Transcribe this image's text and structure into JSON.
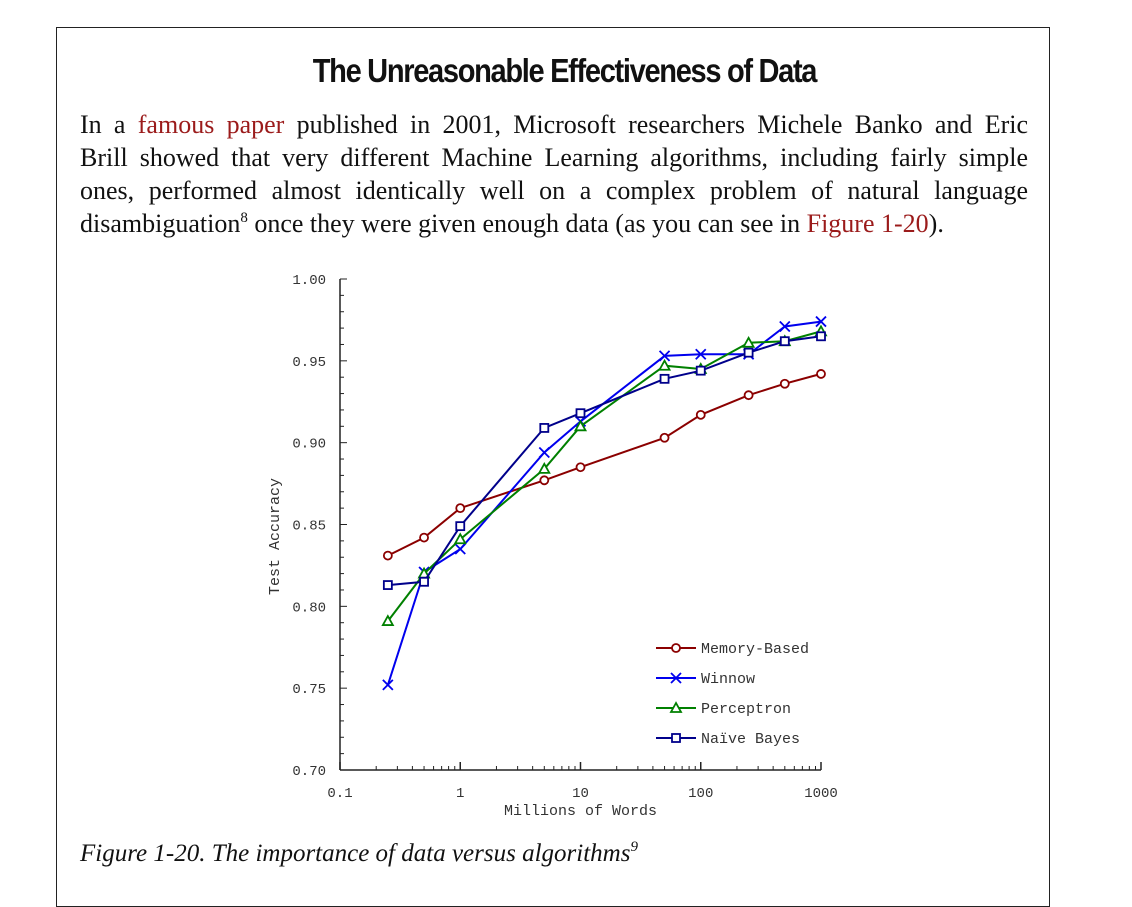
{
  "title": "The Unreasonable Effectiveness of Data",
  "paragraph": {
    "l1_pre": "In a ",
    "l1_link": "famous paper",
    "l1_post": " published in 2001, Microsoft researchers Michele Banko and Eric",
    "l2": "Brill showed that very different Machine Learning algorithms, including fairly simple",
    "l3": "ones, performed almost identically well on a complex problem of natural language",
    "l4_pre": "disambiguation",
    "l4_sup": "8",
    "l4_mid": " once they were given enough data (as you can see in ",
    "l4_link": "Figure 1-20",
    "l4_post": ")."
  },
  "caption": {
    "text": "Figure 1-20. The importance of data versus algorithms",
    "sup": "9"
  },
  "colors": {
    "link": "#9b1b1b",
    "memory_based": "#8b0000",
    "winnow": "#0000ee",
    "perceptron": "#008000",
    "naive_bayes": "#00008b"
  },
  "chart_data": {
    "type": "line",
    "xlabel": "Millions of Words",
    "ylabel": "Test Accuracy",
    "x_scale": "log",
    "xlim": [
      0.1,
      1000
    ],
    "ylim": [
      0.7,
      1.0
    ],
    "x_ticks": [
      "0.1",
      "1",
      "10",
      "100",
      "1000"
    ],
    "y_ticks": [
      "0.70",
      "0.75",
      "0.80",
      "0.85",
      "0.90",
      "0.95",
      "1.00"
    ],
    "legend_position": "bottom-right",
    "x": [
      0.25,
      0.5,
      1,
      5,
      10,
      50,
      100,
      250,
      500,
      1000
    ],
    "series": [
      {
        "name": "Memory-Based",
        "marker": "circle",
        "color": "#8b0000",
        "values": [
          0.831,
          0.842,
          0.86,
          0.877,
          0.885,
          0.903,
          0.917,
          0.929,
          0.936,
          0.942
        ]
      },
      {
        "name": "Winnow",
        "marker": "x",
        "color": "#0000ee",
        "values": [
          0.752,
          0.821,
          0.835,
          0.894,
          0.913,
          0.953,
          0.954,
          0.954,
          0.971,
          0.974
        ]
      },
      {
        "name": "Perceptron",
        "marker": "triangle",
        "color": "#008000",
        "values": [
          0.791,
          0.82,
          0.841,
          0.884,
          0.91,
          0.947,
          0.945,
          0.961,
          0.962,
          0.968
        ]
      },
      {
        "name": "Naïve Bayes",
        "marker": "square",
        "color": "#00008b",
        "values": [
          0.813,
          0.815,
          0.849,
          0.909,
          0.918,
          0.939,
          0.944,
          0.955,
          0.962,
          0.965
        ]
      }
    ]
  }
}
